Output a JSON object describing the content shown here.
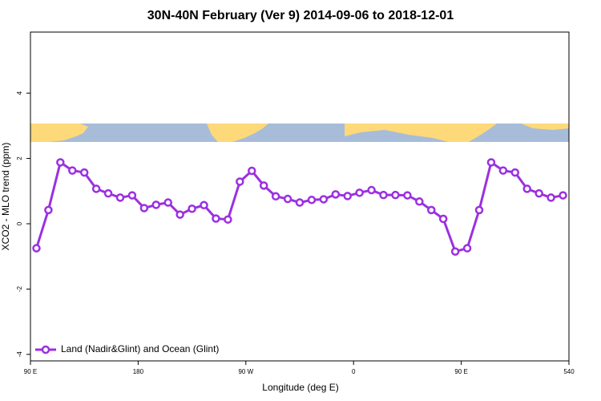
{
  "chart_data": {
    "type": "line",
    "title": "30N-40N February (Ver 9)   2014-09-06 to 2018-12-01",
    "x_label": "Longitude (deg E)",
    "y_label": "XCO2 - MLO trend (ppm)",
    "x": [
      95,
      105,
      115,
      125,
      135,
      145,
      155,
      165,
      175,
      185,
      195,
      205,
      215,
      225,
      235,
      245,
      255,
      265,
      275,
      285,
      295,
      305,
      315,
      325,
      335,
      345,
      355,
      365,
      375,
      385,
      395,
      405,
      415,
      425,
      435,
      445,
      455,
      465,
      475,
      485,
      495,
      505,
      515,
      525,
      535
    ],
    "series": [
      {
        "name": "Land (Nadir&Glint) and Ocean (Glint)",
        "color": "#9b30e0",
        "values": [
          -0.75,
          0.42,
          1.88,
          1.63,
          1.57,
          1.07,
          0.93,
          0.8,
          0.87,
          0.48,
          0.58,
          0.65,
          0.28,
          0.46,
          0.57,
          0.16,
          0.13,
          1.29,
          1.62,
          1.17,
          0.84,
          0.76,
          0.65,
          0.73,
          0.75,
          0.9,
          0.85,
          0.95,
          1.03,
          0.88,
          0.88,
          0.87,
          0.68,
          0.42,
          0.15,
          -0.85,
          -0.75,
          0.42,
          1.88,
          1.63,
          1.57,
          1.07,
          0.93,
          0.8,
          0.87
        ]
      }
    ],
    "xlim": [
      90,
      540
    ],
    "xticks": [
      {
        "value": 90,
        "label": "90 E"
      },
      180,
      {
        "value": 270,
        "label": "90 W"
      },
      {
        "value": 360,
        "label": "0"
      },
      {
        "value": 450,
        "label": "90 E"
      },
      540
    ],
    "ylim": [
      -4.2,
      5.87
    ],
    "yticks": [
      -4,
      -2,
      0,
      2,
      4
    ],
    "legend": "bottom-left"
  }
}
